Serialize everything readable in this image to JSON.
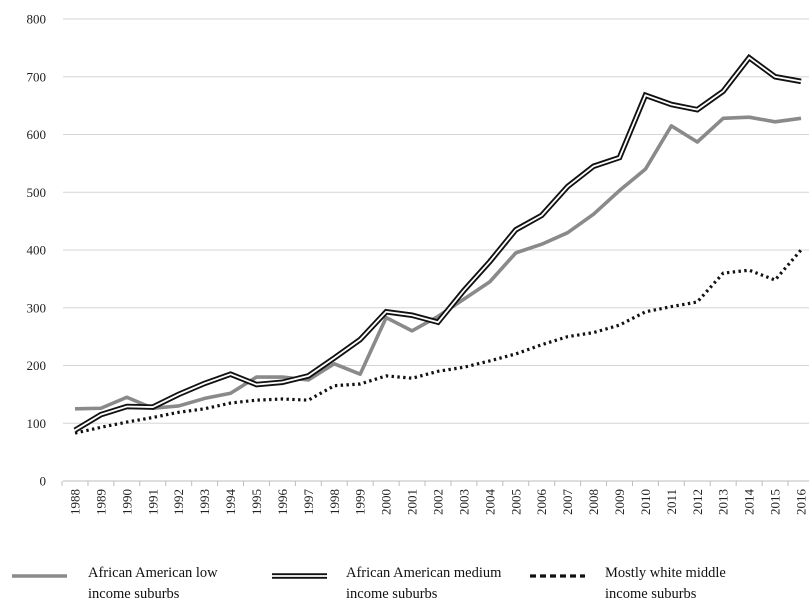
{
  "chart_data": {
    "type": "line",
    "title": "",
    "xlabel": "",
    "ylabel": "",
    "ylim": [
      0,
      800
    ],
    "yticks": [
      0,
      100,
      200,
      300,
      400,
      500,
      600,
      700,
      800
    ],
    "grid": true,
    "legend_position": "bottom",
    "categories": [
      "1988",
      "1989",
      "1990",
      "1991",
      "1992",
      "1993",
      "1994",
      "1995",
      "1996",
      "1997",
      "1998",
      "1999",
      "2000",
      "2001",
      "2002",
      "2003",
      "2004",
      "2005",
      "2006",
      "2007",
      "2008",
      "2009",
      "2010",
      "2011",
      "2012",
      "2013",
      "2014",
      "2015",
      "2016"
    ],
    "series": [
      {
        "name": "African American low income suburbs",
        "legend_lines": [
          "African American low",
          "income suburbs"
        ],
        "style": "solid-gray",
        "color": "#8a8a8a",
        "values": [
          125,
          126,
          145,
          126,
          130,
          143,
          152,
          180,
          180,
          175,
          203,
          185,
          283,
          260,
          285,
          315,
          345,
          395,
          410,
          430,
          462,
          503,
          540,
          615,
          587,
          628,
          630,
          622,
          628
        ]
      },
      {
        "name": "African American medium income suburbs",
        "legend_lines": [
          "African American medium",
          "income suburbs"
        ],
        "style": "double-black",
        "color": "#111111",
        "values": [
          88,
          115,
          129,
          128,
          150,
          169,
          185,
          167,
          171,
          182,
          213,
          245,
          293,
          287,
          275,
          330,
          380,
          435,
          460,
          510,
          545,
          560,
          668,
          652,
          643,
          675,
          733,
          700,
          692
        ]
      },
      {
        "name": "Mostly white middle income suburbs",
        "legend_lines": [
          "Mostly white middle",
          "income suburbs"
        ],
        "style": "dotted-black",
        "color": "#111111",
        "values": [
          83,
          93,
          102,
          110,
          119,
          125,
          135,
          140,
          142,
          140,
          165,
          168,
          182,
          178,
          190,
          197,
          208,
          220,
          236,
          250,
          257,
          270,
          293,
          302,
          310,
          360,
          365,
          348,
          400
        ]
      }
    ]
  }
}
